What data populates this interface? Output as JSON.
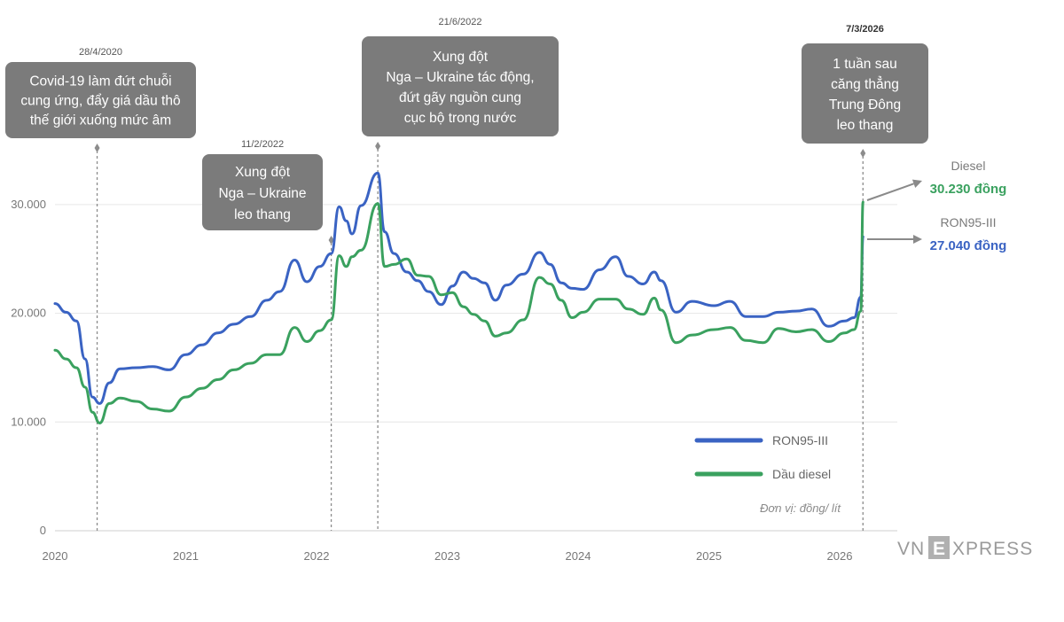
{
  "chart_data": {
    "type": "line",
    "x_axis": {
      "ticks": [
        "2020",
        "2021",
        "2022",
        "2023",
        "2024",
        "2025",
        "2026"
      ],
      "range": [
        "2020-01-01",
        "2026-04-01"
      ]
    },
    "y_axis": {
      "ticks": [
        "0",
        "10.000",
        "20.000",
        "30.000"
      ],
      "tick_values": [
        0,
        10000,
        20000,
        30000
      ],
      "range": [
        0,
        34500
      ]
    },
    "grid": "horizontal",
    "legend_position": "bottom-right",
    "unit": "Đơn vị: đồng/ lít",
    "series": [
      {
        "name": "RON95-III",
        "color": "#3a63c3",
        "points": [
          [
            "2020-01-01",
            20900
          ],
          [
            "2020-02-01",
            20100
          ],
          [
            "2020-03-01",
            19300
          ],
          [
            "2020-03-25",
            15800
          ],
          [
            "2020-04-15",
            12300
          ],
          [
            "2020-05-05",
            11700
          ],
          [
            "2020-06-01",
            13600
          ],
          [
            "2020-07-01",
            14900
          ],
          [
            "2020-08-15",
            15000
          ],
          [
            "2020-10-01",
            15100
          ],
          [
            "2020-11-15",
            14800
          ],
          [
            "2021-01-01",
            16200
          ],
          [
            "2021-02-15",
            17100
          ],
          [
            "2021-04-01",
            18200
          ],
          [
            "2021-05-15",
            19000
          ],
          [
            "2021-07-01",
            19700
          ],
          [
            "2021-08-15",
            21200
          ],
          [
            "2021-09-20",
            22000
          ],
          [
            "2021-11-01",
            24900
          ],
          [
            "2021-12-05",
            22900
          ],
          [
            "2022-01-10",
            24300
          ],
          [
            "2022-02-11",
            25500
          ],
          [
            "2022-03-05",
            29800
          ],
          [
            "2022-03-25",
            28500
          ],
          [
            "2022-04-10",
            27300
          ],
          [
            "2022-05-05",
            29900
          ],
          [
            "2022-06-21",
            32900
          ],
          [
            "2022-07-10",
            27500
          ],
          [
            "2022-08-05",
            25500
          ],
          [
            "2022-09-10",
            23800
          ],
          [
            "2022-10-10",
            23000
          ],
          [
            "2022-11-10",
            22000
          ],
          [
            "2022-12-15",
            20800
          ],
          [
            "2023-01-15",
            22500
          ],
          [
            "2023-02-15",
            23800
          ],
          [
            "2023-03-15",
            23200
          ],
          [
            "2023-04-15",
            22800
          ],
          [
            "2023-05-15",
            21200
          ],
          [
            "2023-06-15",
            22600
          ],
          [
            "2023-08-01",
            23600
          ],
          [
            "2023-09-15",
            25600
          ],
          [
            "2023-10-15",
            24500
          ],
          [
            "2023-11-15",
            22800
          ],
          [
            "2023-12-15",
            22300
          ],
          [
            "2024-01-15",
            22200
          ],
          [
            "2024-03-01",
            24000
          ],
          [
            "2024-04-15",
            25200
          ],
          [
            "2024-05-20",
            23400
          ],
          [
            "2024-07-01",
            22700
          ],
          [
            "2024-08-01",
            23800
          ],
          [
            "2024-08-20",
            23000
          ],
          [
            "2024-10-01",
            20100
          ],
          [
            "2024-11-15",
            21100
          ],
          [
            "2025-01-15",
            20700
          ],
          [
            "2025-03-01",
            21100
          ],
          [
            "2025-04-15",
            19700
          ],
          [
            "2025-06-01",
            19700
          ],
          [
            "2025-07-15",
            20100
          ],
          [
            "2025-09-01",
            20200
          ],
          [
            "2025-10-15",
            20400
          ],
          [
            "2025-12-01",
            18800
          ],
          [
            "2026-01-15",
            19300
          ],
          [
            "2026-02-10",
            19600
          ],
          [
            "2026-03-01",
            21500
          ],
          [
            "2026-03-07",
            27040
          ]
        ]
      },
      {
        "name": "Dầu diesel",
        "color": "#3aa15f",
        "points": [
          [
            "2020-01-01",
            16600
          ],
          [
            "2020-02-01",
            15800
          ],
          [
            "2020-03-01",
            15000
          ],
          [
            "2020-03-25",
            13200
          ],
          [
            "2020-04-15",
            10900
          ],
          [
            "2020-05-05",
            9900
          ],
          [
            "2020-06-01",
            11700
          ],
          [
            "2020-07-01",
            12200
          ],
          [
            "2020-08-15",
            11900
          ],
          [
            "2020-10-01",
            11200
          ],
          [
            "2020-11-15",
            11000
          ],
          [
            "2021-01-01",
            12300
          ],
          [
            "2021-02-15",
            13100
          ],
          [
            "2021-04-01",
            13900
          ],
          [
            "2021-05-15",
            14800
          ],
          [
            "2021-07-01",
            15400
          ],
          [
            "2021-08-15",
            16200
          ],
          [
            "2021-09-20",
            16200
          ],
          [
            "2021-11-01",
            18700
          ],
          [
            "2021-12-05",
            17400
          ],
          [
            "2022-01-10",
            18400
          ],
          [
            "2022-02-11",
            19400
          ],
          [
            "2022-03-05",
            25300
          ],
          [
            "2022-03-25",
            24300
          ],
          [
            "2022-04-10",
            25200
          ],
          [
            "2022-05-05",
            25800
          ],
          [
            "2022-06-21",
            30100
          ],
          [
            "2022-07-10",
            24300
          ],
          [
            "2022-08-05",
            24500
          ],
          [
            "2022-09-10",
            25000
          ],
          [
            "2022-10-10",
            23500
          ],
          [
            "2022-11-10",
            23400
          ],
          [
            "2022-12-15",
            21700
          ],
          [
            "2023-01-15",
            21900
          ],
          [
            "2023-02-15",
            20600
          ],
          [
            "2023-03-15",
            19900
          ],
          [
            "2023-04-15",
            19300
          ],
          [
            "2023-05-15",
            17900
          ],
          [
            "2023-06-15",
            18200
          ],
          [
            "2023-08-01",
            19400
          ],
          [
            "2023-09-15",
            23300
          ],
          [
            "2023-10-15",
            22700
          ],
          [
            "2023-11-15",
            21200
          ],
          [
            "2023-12-15",
            19600
          ],
          [
            "2024-01-15",
            20100
          ],
          [
            "2024-03-01",
            21300
          ],
          [
            "2024-04-15",
            21300
          ],
          [
            "2024-05-20",
            20400
          ],
          [
            "2024-07-01",
            19900
          ],
          [
            "2024-08-01",
            21400
          ],
          [
            "2024-08-20",
            20300
          ],
          [
            "2024-10-01",
            17300
          ],
          [
            "2024-11-15",
            18000
          ],
          [
            "2025-01-15",
            18500
          ],
          [
            "2025-03-01",
            18700
          ],
          [
            "2025-04-15",
            17500
          ],
          [
            "2025-06-01",
            17300
          ],
          [
            "2025-07-15",
            18600
          ],
          [
            "2025-09-01",
            18300
          ],
          [
            "2025-10-15",
            18500
          ],
          [
            "2025-12-01",
            17400
          ],
          [
            "2026-01-15",
            18200
          ],
          [
            "2026-02-10",
            18500
          ],
          [
            "2026-03-01",
            20200
          ],
          [
            "2026-03-07",
            30230
          ]
        ]
      }
    ],
    "annotations": [
      {
        "date": "2020-04-28",
        "date_label": "28/4/2020",
        "lines": [
          "Covid-19 làm đứt chuỗi",
          "cung ứng, đẩy giá dầu thô",
          "thế giới xuống mức âm"
        ]
      },
      {
        "date": "2022-02-11",
        "date_label": "11/2/2022",
        "lines": [
          "Xung đột",
          "Nga – Ukraine",
          "leo thang"
        ]
      },
      {
        "date": "2022-06-21",
        "date_label": "21/6/2022",
        "lines": [
          "Xung đột",
          "Nga – Ukraine tác động,",
          "đứt gãy nguồn cung",
          "cục bộ trong nước"
        ]
      },
      {
        "date": "2026-03-07",
        "date_label": "7/3/2026",
        "lines": [
          "1 tuần sau",
          "căng thẳng",
          "Trung Đông",
          "leo thang"
        ]
      }
    ],
    "end_labels": [
      {
        "name": "Diesel",
        "value": "30.230 đồng",
        "color": "#3aa15f"
      },
      {
        "name": "RON95-III",
        "value": "27.040 đồng",
        "color": "#3a63c3"
      }
    ]
  },
  "legend": [
    {
      "label": "RON95-III",
      "color": "#3a63c3"
    },
    {
      "label": "Dầu diesel",
      "color": "#3aa15f"
    }
  ],
  "brand": {
    "logo_text_left": "VN",
    "logo_letter": "E",
    "logo_text_right": "XPRESS"
  }
}
